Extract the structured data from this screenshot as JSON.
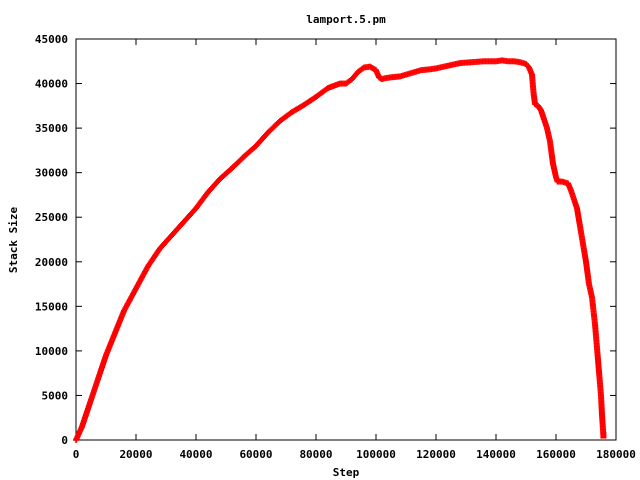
{
  "chart_data": {
    "type": "scatter",
    "title": "lamport.5.pm",
    "xlabel": "Step",
    "ylabel": "Stack Size",
    "xlim": [
      0,
      180000
    ],
    "ylim": [
      0,
      45000
    ],
    "x_ticks": [
      "0",
      "20000",
      "40000",
      "60000",
      "80000",
      "100000",
      "120000",
      "140000",
      "160000",
      "180000"
    ],
    "y_ticks": [
      "0",
      "5000",
      "10000",
      "15000",
      "20000",
      "25000",
      "30000",
      "35000",
      "40000",
      "45000"
    ],
    "grid": false,
    "legend": "none",
    "marker_color": "#ff0000",
    "series": [
      {
        "x": [
          0,
          2000,
          5000,
          8000,
          10000,
          13000,
          16000,
          20000,
          24000,
          28000,
          32000,
          36000,
          40000,
          44000,
          48000,
          52000,
          56000,
          60000,
          64000,
          68000,
          72000,
          76000,
          80000,
          84000,
          88000,
          90000,
          92000,
          94000,
          96000,
          98000,
          100000,
          101000,
          102000,
          103000,
          105000,
          108000,
          112000,
          115000,
          118000,
          120000,
          124000,
          128000,
          132000,
          136000,
          140000,
          142000,
          144000,
          146000,
          148000,
          150000,
          151000,
          152000,
          152500,
          153000,
          154000,
          155000,
          156000,
          157000,
          158000,
          159000,
          160000,
          160500,
          162000,
          164000,
          165000,
          166000,
          167000,
          168000,
          169000,
          170000,
          171000,
          172000,
          173000,
          173500,
          174000,
          174500,
          175000,
          175300,
          175600,
          175800
        ],
        "y": [
          0,
          1500,
          4500,
          7500,
          9500,
          12000,
          14500,
          17000,
          19500,
          21500,
          23000,
          24500,
          26000,
          27800,
          29300,
          30500,
          31800,
          33000,
          34500,
          35800,
          36800,
          37600,
          38500,
          39500,
          40000,
          40000,
          40500,
          41300,
          41800,
          41900,
          41500,
          40700,
          40500,
          40600,
          40700,
          40800,
          41200,
          41500,
          41600,
          41700,
          42000,
          42300,
          42400,
          42500,
          42500,
          42600,
          42500,
          42500,
          42400,
          42200,
          41800,
          41000,
          39000,
          37700,
          37500,
          37000,
          36000,
          35000,
          33500,
          31000,
          29500,
          29000,
          29000,
          28800,
          28000,
          27000,
          26000,
          24000,
          22000,
          20000,
          17500,
          16000,
          13000,
          11000,
          9000,
          7000,
          5000,
          3000,
          1500,
          500
        ]
      }
    ]
  }
}
